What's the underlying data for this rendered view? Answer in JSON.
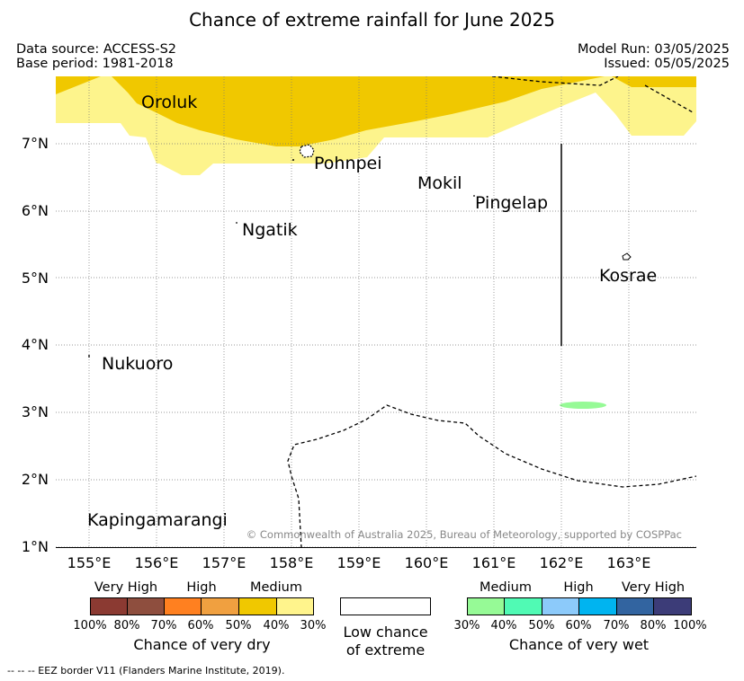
{
  "title": "Chance of extreme rainfall for June 2025",
  "meta": {
    "data_source": "Data source: ACCESS-S2",
    "base_period": "Base period: 1981-2018",
    "model_run": "Model Run: 03/05/2025",
    "issued": "Issued: 05/05/2025"
  },
  "map": {
    "lon_range": [
      154.5,
      164.0
    ],
    "lat_range": [
      0.97,
      8.0
    ],
    "x_ticks": [
      "155°E",
      "156°E",
      "157°E",
      "158°E",
      "159°E",
      "160°E",
      "161°E",
      "162°E",
      "163°E"
    ],
    "y_ticks": [
      "7°N",
      "6°N",
      "5°N",
      "4°N",
      "3°N",
      "2°N",
      "1°N"
    ],
    "places": {
      "oroluk": "Oroluk",
      "pohnpei": "Pohnpei",
      "mokil": "Mokil",
      "pingelap": "Pingelap",
      "ngatik": "Ngatik",
      "kosrae": "Kosrae",
      "nukuoro": "Nukuoro",
      "kapingamarangi": "Kapingamarangi"
    },
    "copyright": "© Commonwealth of Australia 2025, Bureau of Meteorology, supported by COSPPac",
    "colors": {
      "medium_dry": "#f0c800",
      "low_medium_dry": "#fdf48c",
      "medium_wet": "#96fa96"
    }
  },
  "legend": {
    "dry": {
      "categories": [
        "Very High",
        "High",
        "Medium"
      ],
      "percents": [
        "100%",
        "80%",
        "70%",
        "60%",
        "50%",
        "40%",
        "30%"
      ],
      "colors": [
        "#8b3a32",
        "#8e4e3e",
        "#ff8020",
        "#f0a040",
        "#f0c800",
        "#fff48c"
      ],
      "caption": "Chance of very dry"
    },
    "low": {
      "caption_line1": "Low chance",
      "caption_line2": "of extreme",
      "color": "#ffffff"
    },
    "wet": {
      "categories": [
        "Medium",
        "High",
        "Very High"
      ],
      "percents": [
        "30%",
        "40%",
        "50%",
        "60%",
        "70%",
        "80%",
        "100%"
      ],
      "colors": [
        "#96fa96",
        "#50fab4",
        "#8ccafa",
        "#00b4f0",
        "#3264a0",
        "#3c3c78"
      ],
      "caption": "Chance of very wet"
    }
  },
  "footnote": "--  --  -- EEZ border V11 (Flanders Marine Institute, 2019)."
}
